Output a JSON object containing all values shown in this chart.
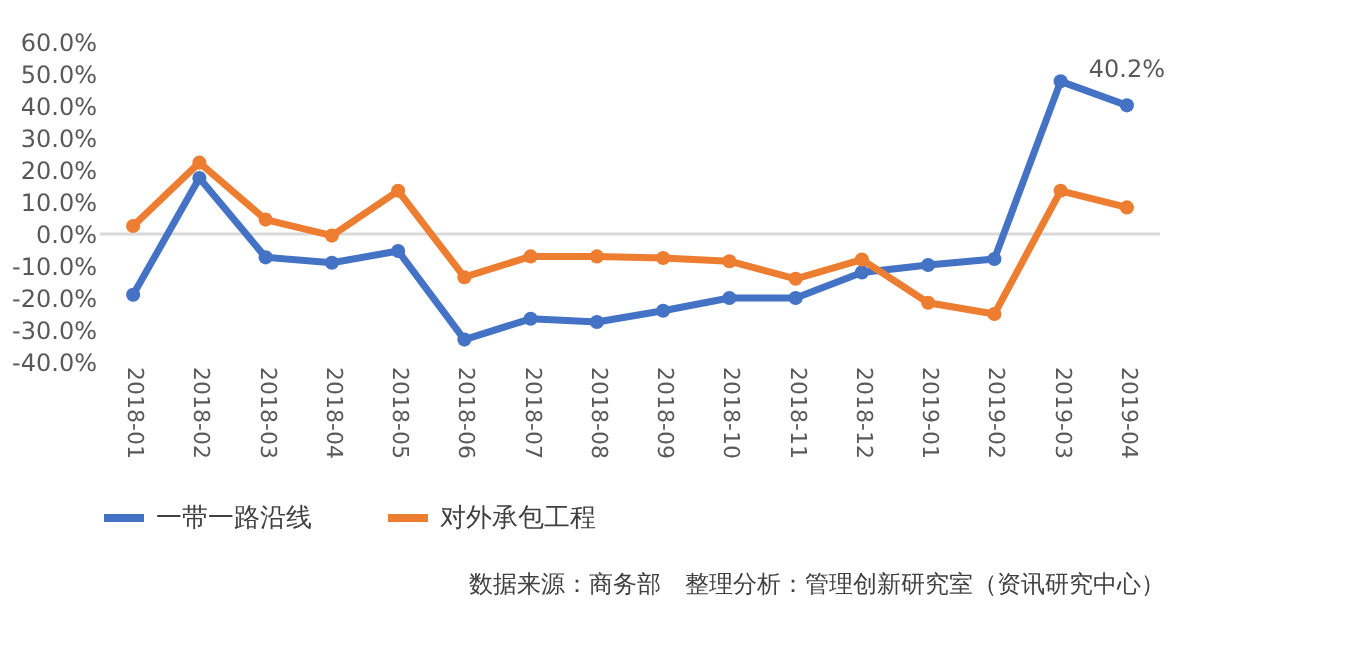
{
  "chart_data": {
    "type": "line",
    "categories": [
      "2018-01",
      "2018-02",
      "2018-03",
      "2018-04",
      "2018-05",
      "2018-06",
      "2018-07",
      "2018-08",
      "2018-09",
      "2018-10",
      "2018-11",
      "2018-12",
      "2019-01",
      "2019-02",
      "2019-03",
      "2019-04"
    ],
    "series": [
      {
        "name": "一带一路沿线",
        "color": "#4472c4",
        "values": [
          -19,
          17.5,
          -7.3,
          -9,
          -5.3,
          -33,
          -26.5,
          -27.5,
          -24,
          -20,
          -20,
          -12,
          -9.7,
          -7.8,
          47.7,
          40.2
        ],
        "value_labels": [
          null,
          null,
          null,
          null,
          null,
          null,
          null,
          null,
          null,
          null,
          null,
          null,
          null,
          null,
          null,
          "40.2%"
        ]
      },
      {
        "name": "对外承包工程",
        "color": "#ed7d31",
        "values": [
          2.5,
          22.3,
          4.5,
          -0.5,
          13.5,
          -13.5,
          -7,
          -7,
          -7.5,
          -8.5,
          -14,
          -8,
          -21.5,
          -25,
          13.5,
          8.3
        ]
      }
    ],
    "ylim": [
      -40,
      60
    ],
    "yticks": [
      {
        "value": -40,
        "label": "-40.0%"
      },
      {
        "value": -30,
        "label": "-30.0%"
      },
      {
        "value": -20,
        "label": "-20.0%"
      },
      {
        "value": -10,
        "label": "-10.0%"
      },
      {
        "value": 0,
        "label": "0.0%"
      },
      {
        "value": 10,
        "label": "10.0%"
      },
      {
        "value": 20,
        "label": "20.0%"
      },
      {
        "value": 30,
        "label": "30.0%"
      },
      {
        "value": 40,
        "label": "40.0%"
      },
      {
        "value": 50,
        "label": "50.0%"
      },
      {
        "value": 60,
        "label": "60.0%"
      }
    ],
    "ref_lines": [
      {
        "axis": "y",
        "value": 0,
        "color": "#d9d9d9"
      }
    ],
    "grid": false,
    "legend": "bottom",
    "marker": "circle",
    "line_style": "solid",
    "annotations": [
      "数据来源：商务部　整理分析：管理创新研究室（资讯研究中心）"
    ]
  }
}
